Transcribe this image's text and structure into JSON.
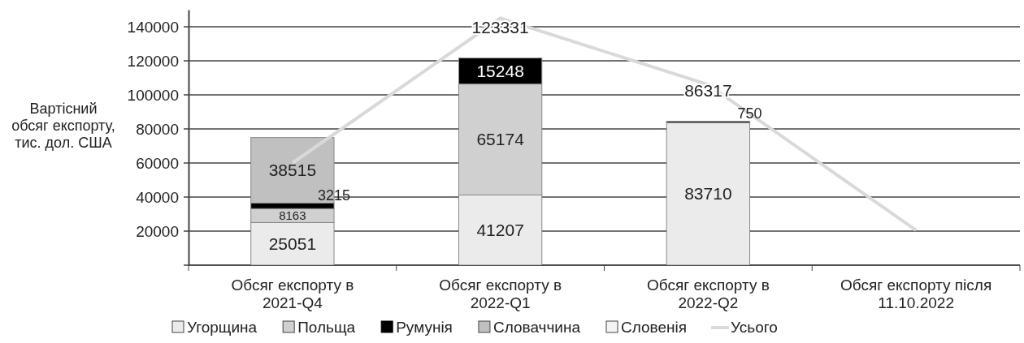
{
  "chart_data": {
    "type": "bar",
    "stacked": true,
    "ylabel": "Вартісний обсяг експорту, тис. дол. США",
    "categories": [
      "Обсяг експорту в 2021-Q4",
      "Обсяг експорту в 2022-Q1",
      "Обсяг експорту в 2022-Q2",
      "Обсяг експорту після 11.10.2022"
    ],
    "series": [
      {
        "name": "Угорщина",
        "color": "#ebebeb",
        "values": [
          25051,
          41207,
          83710,
          null
        ],
        "value_labels": [
          "25051",
          "41207",
          "83710",
          null
        ]
      },
      {
        "name": "Польща",
        "color": "#d0d0d0",
        "values": [
          8163,
          65174,
          null,
          null
        ],
        "value_labels": [
          "8163",
          "65174",
          null,
          null
        ]
      },
      {
        "name": "Румунія",
        "color": "#000000",
        "values": [
          3215,
          15248,
          750,
          null
        ],
        "value_labels": [
          "3215",
          "15248",
          "750",
          null
        ]
      },
      {
        "name": "Словаччина",
        "color": "#c0c0c0",
        "values": [
          38515,
          null,
          null,
          null
        ],
        "value_labels": [
          "38515",
          null,
          null,
          null
        ]
      },
      {
        "name": "Словенія",
        "color": "#f3f3f3",
        "values": [
          null,
          null,
          null,
          null
        ]
      },
      {
        "name": "Усього",
        "type": "line",
        "color": "#d9d9d9",
        "values": [
          60000,
          145000,
          106000,
          20500
        ]
      }
    ],
    "annotations": [
      "123331",
      "86317"
    ],
    "ylim": [
      0,
      150000
    ],
    "yticks": [
      {
        "value": 0,
        "label": null
      },
      20000,
      40000,
      60000,
      80000,
      100000,
      120000,
      140000
    ],
    "grid": "y",
    "legend": "bottom"
  }
}
